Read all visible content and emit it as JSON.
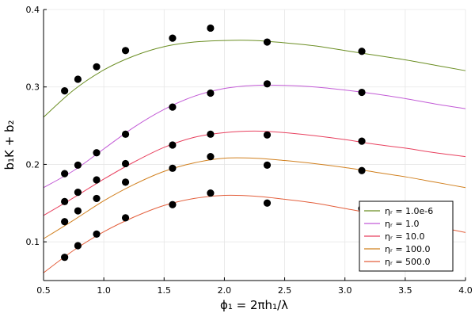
{
  "chart_data": {
    "type": "scatter",
    "xlabel": "ϕ₁ = 2πh₁/λ",
    "ylabel": "b₁K + b₂",
    "xlim": [
      0.5,
      4.0
    ],
    "ylim": [
      0.05,
      0.4
    ],
    "x_ticks": [
      "0.5",
      "1.0",
      "1.5",
      "2.0",
      "2.5",
      "3.0",
      "3.5",
      "4.0"
    ],
    "y_ticks": [
      "0.1",
      "0.2",
      "0.3",
      "0.4"
    ],
    "grid": true,
    "legend_position": "bottom-right",
    "series": [
      {
        "name": "ηᵣ = 1.0e-6",
        "color": "#6b8e23",
        "curve": {
          "x": [
            0.5,
            0.75,
            1.0,
            1.25,
            1.5,
            1.75,
            2.0,
            2.25,
            2.5,
            2.75,
            3.0,
            3.25,
            3.5,
            3.75,
            4.0
          ],
          "y": [
            0.261,
            0.296,
            0.322,
            0.34,
            0.352,
            0.358,
            0.36,
            0.36,
            0.357,
            0.353,
            0.347,
            0.341,
            0.335,
            0.328,
            0.321
          ]
        },
        "points": {
          "x": [
            0.675,
            0.785,
            0.94,
            1.18,
            1.57,
            1.885,
            2.355,
            3.14
          ],
          "y": [
            0.295,
            0.31,
            0.326,
            0.347,
            0.363,
            0.376,
            0.358,
            0.346
          ]
        }
      },
      {
        "name": "ηᵣ = 1.0",
        "color": "#c25bd6",
        "curve": {
          "x": [
            0.5,
            0.75,
            1.0,
            1.25,
            1.5,
            1.75,
            2.0,
            2.25,
            2.5,
            2.75,
            3.0,
            3.25,
            3.5,
            3.75,
            4.0
          ],
          "y": [
            0.17,
            0.192,
            0.22,
            0.248,
            0.271,
            0.288,
            0.298,
            0.302,
            0.302,
            0.3,
            0.296,
            0.291,
            0.285,
            0.278,
            0.272
          ]
        },
        "points": {
          "x": [
            0.675,
            0.785,
            0.94,
            1.18,
            1.57,
            1.885,
            2.355,
            3.14
          ],
          "y": [
            0.188,
            0.199,
            0.215,
            0.239,
            0.274,
            0.292,
            0.304,
            0.293
          ]
        }
      },
      {
        "name": "ηᵣ = 10.0",
        "color": "#e8415f",
        "curve": {
          "x": [
            0.5,
            0.75,
            1.0,
            1.25,
            1.5,
            1.75,
            2.0,
            2.25,
            2.5,
            2.75,
            3.0,
            3.25,
            3.5,
            3.75,
            4.0
          ],
          "y": [
            0.134,
            0.157,
            0.181,
            0.203,
            0.222,
            0.235,
            0.241,
            0.243,
            0.241,
            0.237,
            0.232,
            0.226,
            0.221,
            0.215,
            0.21
          ]
        },
        "points": {
          "x": [
            0.675,
            0.785,
            0.94,
            1.18,
            1.57,
            1.885,
            2.355,
            3.14
          ],
          "y": [
            0.152,
            0.164,
            0.18,
            0.201,
            0.225,
            0.239,
            0.238,
            0.23
          ]
        }
      },
      {
        "name": "ηᵣ = 100.0",
        "color": "#d1801f",
        "curve": {
          "x": [
            0.5,
            0.75,
            1.0,
            1.25,
            1.5,
            1.75,
            2.0,
            2.25,
            2.5,
            2.75,
            3.0,
            3.25,
            3.5,
            3.75,
            4.0
          ],
          "y": [
            0.104,
            0.128,
            0.153,
            0.174,
            0.191,
            0.202,
            0.208,
            0.208,
            0.205,
            0.201,
            0.196,
            0.19,
            0.184,
            0.177,
            0.17
          ]
        },
        "points": {
          "x": [
            0.675,
            0.785,
            0.94,
            1.18,
            1.57,
            1.885,
            2.355,
            3.14
          ],
          "y": [
            0.126,
            0.14,
            0.156,
            0.177,
            0.195,
            0.21,
            0.199,
            0.192
          ]
        }
      },
      {
        "name": "ηᵣ = 500.0",
        "color": "#e35f3c",
        "curve": {
          "x": [
            0.5,
            0.75,
            1.0,
            1.25,
            1.5,
            1.75,
            2.0,
            2.25,
            2.5,
            2.75,
            3.0,
            3.25,
            3.5,
            3.75,
            4.0
          ],
          "y": [
            0.06,
            0.089,
            0.113,
            0.132,
            0.147,
            0.156,
            0.16,
            0.159,
            0.155,
            0.15,
            0.143,
            0.136,
            0.128,
            0.12,
            0.112
          ]
        },
        "points": {
          "x": [
            0.675,
            0.785,
            0.94,
            1.18,
            1.57,
            1.885,
            2.355,
            3.14
          ],
          "y": [
            0.08,
            0.095,
            0.11,
            0.131,
            0.148,
            0.163,
            0.15,
            0.143
          ]
        }
      }
    ]
  }
}
